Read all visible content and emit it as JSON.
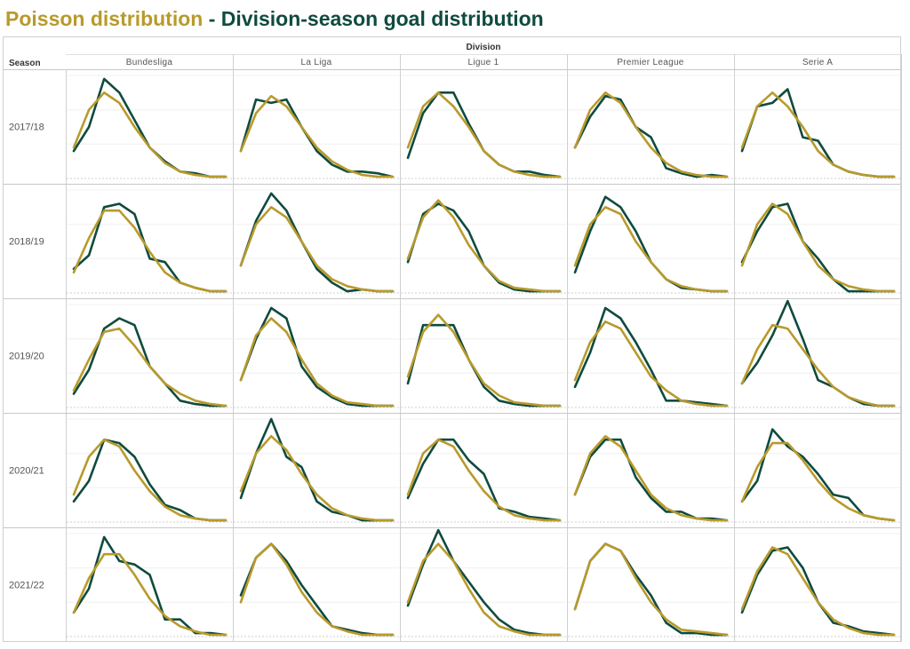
{
  "title": {
    "part1": "Poisson distribution",
    "separator": " - ",
    "part2": "Division-season goal distribution"
  },
  "chart_data": {
    "type": "line",
    "column_header": "Division",
    "row_header": "Season",
    "columns": [
      "Bundesliga",
      "La Liga",
      "Ligue 1",
      "Premier League",
      "Serie A"
    ],
    "rows": [
      "2017/18",
      "2018/19",
      "2019/20",
      "2020/21",
      "2021/22"
    ],
    "x": [
      0,
      1,
      2,
      3,
      4,
      5,
      6,
      7,
      8,
      9,
      10
    ],
    "ylim": [
      0,
      0.3
    ],
    "series_colors": {
      "observed": "#0f4b3e",
      "poisson": "#b89a2c"
    },
    "panels": [
      [
        {
          "observed": [
            0.08,
            0.15,
            0.29,
            0.25,
            0.17,
            0.09,
            0.05,
            0.02,
            0.015,
            0.005,
            0.005
          ],
          "poisson": [
            0.09,
            0.2,
            0.25,
            0.22,
            0.15,
            0.09,
            0.045,
            0.02,
            0.01,
            0.005,
            0.005
          ]
        },
        {
          "observed": [
            0.08,
            0.23,
            0.22,
            0.23,
            0.15,
            0.08,
            0.04,
            0.02,
            0.02,
            0.015,
            0.005
          ],
          "poisson": [
            0.08,
            0.19,
            0.24,
            0.21,
            0.15,
            0.09,
            0.05,
            0.025,
            0.01,
            0.005,
            0.005
          ]
        },
        {
          "observed": [
            0.06,
            0.19,
            0.25,
            0.25,
            0.16,
            0.08,
            0.04,
            0.02,
            0.02,
            0.01,
            0.005
          ],
          "poisson": [
            0.09,
            0.21,
            0.25,
            0.21,
            0.15,
            0.08,
            0.04,
            0.02,
            0.01,
            0.005,
            0.005
          ]
        },
        {
          "observed": [
            0.09,
            0.18,
            0.24,
            0.23,
            0.15,
            0.12,
            0.03,
            0.015,
            0.005,
            0.01,
            0.005
          ],
          "poisson": [
            0.09,
            0.2,
            0.25,
            0.22,
            0.15,
            0.09,
            0.045,
            0.02,
            0.01,
            0.005,
            0.005
          ]
        },
        {
          "observed": [
            0.08,
            0.21,
            0.22,
            0.26,
            0.12,
            0.11,
            0.04,
            0.02,
            0.01,
            0.005,
            0.005
          ],
          "poisson": [
            0.09,
            0.21,
            0.25,
            0.21,
            0.15,
            0.08,
            0.04,
            0.02,
            0.01,
            0.005,
            0.005
          ]
        }
      ],
      [
        {
          "observed": [
            0.07,
            0.11,
            0.25,
            0.26,
            0.23,
            0.1,
            0.09,
            0.03,
            0.015,
            0.005,
            0.005
          ],
          "poisson": [
            0.06,
            0.16,
            0.24,
            0.24,
            0.19,
            0.12,
            0.06,
            0.03,
            0.015,
            0.005,
            0.005
          ]
        },
        {
          "observed": [
            0.08,
            0.21,
            0.29,
            0.24,
            0.15,
            0.07,
            0.03,
            0.005,
            0.01,
            0.005,
            0.005
          ],
          "poisson": [
            0.08,
            0.2,
            0.25,
            0.22,
            0.15,
            0.08,
            0.04,
            0.02,
            0.01,
            0.005,
            0.005
          ]
        },
        {
          "observed": [
            0.09,
            0.23,
            0.26,
            0.24,
            0.18,
            0.08,
            0.03,
            0.01,
            0.005,
            0.005,
            0.005
          ],
          "poisson": [
            0.1,
            0.22,
            0.27,
            0.22,
            0.14,
            0.08,
            0.035,
            0.015,
            0.01,
            0.005,
            0.005
          ]
        },
        {
          "observed": [
            0.06,
            0.18,
            0.28,
            0.25,
            0.18,
            0.09,
            0.04,
            0.015,
            0.01,
            0.005,
            0.005
          ],
          "poisson": [
            0.08,
            0.2,
            0.25,
            0.23,
            0.15,
            0.09,
            0.04,
            0.02,
            0.01,
            0.005,
            0.005
          ]
        },
        {
          "observed": [
            0.09,
            0.18,
            0.25,
            0.26,
            0.15,
            0.1,
            0.04,
            0.005,
            0.005,
            0.005,
            0.005
          ],
          "poisson": [
            0.08,
            0.2,
            0.26,
            0.23,
            0.15,
            0.08,
            0.04,
            0.02,
            0.01,
            0.005,
            0.005
          ]
        }
      ],
      [
        {
          "observed": [
            0.04,
            0.11,
            0.23,
            0.26,
            0.24,
            0.12,
            0.07,
            0.02,
            0.01,
            0.005,
            0.005
          ],
          "poisson": [
            0.05,
            0.14,
            0.22,
            0.23,
            0.18,
            0.12,
            0.07,
            0.04,
            0.02,
            0.01,
            0.005
          ]
        },
        {
          "observed": [
            0.08,
            0.2,
            0.29,
            0.26,
            0.12,
            0.06,
            0.03,
            0.01,
            0.005,
            0.005,
            0.005
          ],
          "poisson": [
            0.08,
            0.21,
            0.26,
            0.22,
            0.14,
            0.07,
            0.035,
            0.015,
            0.01,
            0.005,
            0.005
          ]
        },
        {
          "observed": [
            0.07,
            0.24,
            0.24,
            0.24,
            0.14,
            0.06,
            0.02,
            0.01,
            0.005,
            0.005,
            0.005
          ],
          "poisson": [
            0.09,
            0.22,
            0.27,
            0.22,
            0.14,
            0.07,
            0.035,
            0.015,
            0.01,
            0.005,
            0.005
          ]
        },
        {
          "observed": [
            0.06,
            0.16,
            0.29,
            0.26,
            0.19,
            0.11,
            0.02,
            0.02,
            0.015,
            0.01,
            0.005
          ],
          "poisson": [
            0.08,
            0.19,
            0.25,
            0.23,
            0.16,
            0.09,
            0.05,
            0.02,
            0.01,
            0.005,
            0.005
          ]
        },
        {
          "observed": [
            0.07,
            0.13,
            0.21,
            0.31,
            0.2,
            0.08,
            0.06,
            0.03,
            0.01,
            0.005,
            0.005
          ],
          "poisson": [
            0.07,
            0.17,
            0.24,
            0.23,
            0.17,
            0.11,
            0.06,
            0.03,
            0.015,
            0.005,
            0.005
          ]
        }
      ],
      [
        {
          "observed": [
            0.06,
            0.12,
            0.24,
            0.23,
            0.19,
            0.11,
            0.05,
            0.035,
            0.01,
            0.005,
            0.005
          ],
          "poisson": [
            0.08,
            0.19,
            0.24,
            0.22,
            0.15,
            0.09,
            0.045,
            0.02,
            0.01,
            0.005,
            0.005
          ]
        },
        {
          "observed": [
            0.07,
            0.2,
            0.3,
            0.19,
            0.16,
            0.06,
            0.03,
            0.02,
            0.005,
            0.005,
            0.005
          ],
          "poisson": [
            0.09,
            0.2,
            0.25,
            0.21,
            0.14,
            0.08,
            0.04,
            0.02,
            0.01,
            0.005,
            0.005
          ]
        },
        {
          "observed": [
            0.07,
            0.17,
            0.24,
            0.24,
            0.18,
            0.14,
            0.04,
            0.03,
            0.015,
            0.01,
            0.005
          ],
          "poisson": [
            0.08,
            0.2,
            0.24,
            0.22,
            0.15,
            0.09,
            0.045,
            0.02,
            0.01,
            0.005,
            0.005
          ]
        },
        {
          "observed": [
            0.08,
            0.19,
            0.24,
            0.24,
            0.13,
            0.07,
            0.03,
            0.03,
            0.01,
            0.01,
            0.005
          ],
          "poisson": [
            0.08,
            0.2,
            0.25,
            0.22,
            0.15,
            0.08,
            0.04,
            0.02,
            0.01,
            0.005,
            0.005
          ]
        },
        {
          "observed": [
            0.06,
            0.12,
            0.27,
            0.22,
            0.19,
            0.14,
            0.08,
            0.07,
            0.02,
            0.01,
            0.005
          ],
          "poisson": [
            0.06,
            0.16,
            0.23,
            0.23,
            0.18,
            0.12,
            0.07,
            0.04,
            0.02,
            0.01,
            0.005
          ]
        }
      ],
      [
        {
          "observed": [
            0.07,
            0.14,
            0.29,
            0.22,
            0.21,
            0.18,
            0.05,
            0.05,
            0.01,
            0.01,
            0.005
          ],
          "poisson": [
            0.07,
            0.17,
            0.24,
            0.24,
            0.18,
            0.11,
            0.06,
            0.03,
            0.015,
            0.005,
            0.005
          ]
        },
        {
          "observed": [
            0.12,
            0.23,
            0.27,
            0.22,
            0.15,
            0.09,
            0.03,
            0.02,
            0.01,
            0.005,
            0.005
          ],
          "poisson": [
            0.1,
            0.23,
            0.27,
            0.21,
            0.13,
            0.07,
            0.03,
            0.015,
            0.005,
            0.005,
            0.005
          ]
        },
        {
          "observed": [
            0.09,
            0.21,
            0.31,
            0.22,
            0.16,
            0.1,
            0.05,
            0.02,
            0.01,
            0.005,
            0.005
          ],
          "poisson": [
            0.1,
            0.22,
            0.27,
            0.22,
            0.14,
            0.07,
            0.03,
            0.015,
            0.005,
            0.005,
            0.005
          ]
        },
        {
          "observed": [
            0.08,
            0.22,
            0.27,
            0.25,
            0.18,
            0.12,
            0.04,
            0.01,
            0.01,
            0.005,
            0.005
          ],
          "poisson": [
            0.08,
            0.22,
            0.27,
            0.25,
            0.17,
            0.1,
            0.05,
            0.02,
            0.015,
            0.01,
            0.005
          ]
        },
        {
          "observed": [
            0.07,
            0.18,
            0.25,
            0.26,
            0.2,
            0.1,
            0.04,
            0.03,
            0.015,
            0.01,
            0.005
          ],
          "poisson": [
            0.08,
            0.19,
            0.26,
            0.24,
            0.17,
            0.1,
            0.05,
            0.025,
            0.01,
            0.005,
            0.005
          ]
        }
      ]
    ]
  }
}
